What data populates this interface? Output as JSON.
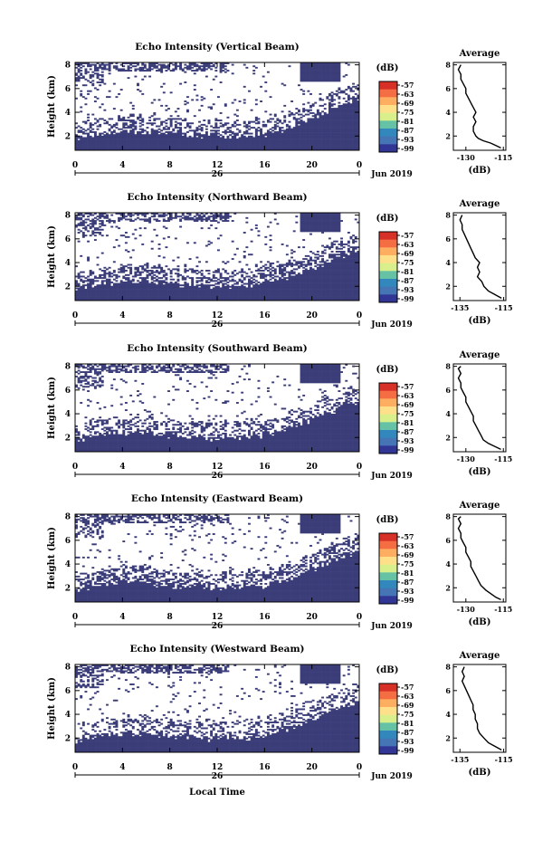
{
  "colorbar": {
    "unit": "(dB)",
    "ticks": [
      "-57",
      "-63",
      "-69",
      "-75",
      "-81",
      "-87",
      "-93",
      "-99"
    ],
    "colors": [
      "#d73027",
      "#f46d43",
      "#fdae61",
      "#fee08b",
      "#d9ef8b",
      "#66c2a5",
      "#3288bd",
      "#4575b4",
      "#313695"
    ]
  },
  "shared": {
    "height_label": "Height (km)",
    "y_ticks": [
      "2",
      "4",
      "6",
      "8"
    ],
    "x_ticks": [
      "0",
      "4",
      "8",
      "12",
      "16",
      "20",
      "0"
    ],
    "day_label": "26",
    "month_label": "Jun 2019",
    "avg_title": "Average",
    "avg_xlabel": "(dB)",
    "avg_y_ticks": [
      "2",
      "4",
      "6",
      "8"
    ]
  },
  "xlabel_bottom": "Local Time",
  "fill_color": "#3b3d79",
  "chart_data": [
    {
      "type": "heatmap",
      "title": "Echo Intensity (Vertical Beam)",
      "ylabel": "Height (km)",
      "xlim": [
        0,
        24
      ],
      "ylim": [
        0.8,
        8.2
      ],
      "avg": {
        "type": "line",
        "xlim": [
          -135,
          -114
        ],
        "x_ticks": [
          "-130",
          "-115"
        ],
        "profile": [
          [
            -116,
            1.0
          ],
          [
            -118,
            1.2
          ],
          [
            -120,
            1.4
          ],
          [
            -123,
            1.6
          ],
          [
            -125,
            1.8
          ],
          [
            -126,
            2.0
          ],
          [
            -127,
            2.4
          ],
          [
            -127,
            2.8
          ],
          [
            -126,
            3.2
          ],
          [
            -127,
            3.6
          ],
          [
            -126,
            4.0
          ],
          [
            -127,
            4.4
          ],
          [
            -128,
            4.8
          ],
          [
            -129,
            5.2
          ],
          [
            -130,
            5.6
          ],
          [
            -130,
            6.0
          ],
          [
            -131,
            6.4
          ],
          [
            -132,
            6.8
          ],
          [
            -132,
            7.2
          ],
          [
            -133,
            7.6
          ],
          [
            -132,
            8.0
          ]
        ]
      }
    },
    {
      "type": "heatmap",
      "title": "Echo Intensity (Northward Beam)",
      "ylabel": "Height (km)",
      "xlim": [
        0,
        24
      ],
      "ylim": [
        0.8,
        8.2
      ],
      "avg": {
        "type": "line",
        "xlim": [
          -138,
          -114
        ],
        "x_ticks": [
          "-135",
          "-115"
        ],
        "profile": [
          [
            -116,
            1.0
          ],
          [
            -119,
            1.3
          ],
          [
            -122,
            1.6
          ],
          [
            -124,
            2.0
          ],
          [
            -125,
            2.4
          ],
          [
            -127,
            2.8
          ],
          [
            -126,
            3.2
          ],
          [
            -127,
            3.6
          ],
          [
            -126,
            4.0
          ],
          [
            -128,
            4.4
          ],
          [
            -129,
            4.8
          ],
          [
            -130,
            5.2
          ],
          [
            -131,
            5.6
          ],
          [
            -132,
            6.0
          ],
          [
            -133,
            6.4
          ],
          [
            -134,
            6.8
          ],
          [
            -134,
            7.2
          ],
          [
            -135,
            7.6
          ],
          [
            -134,
            8.0
          ]
        ]
      }
    },
    {
      "type": "heatmap",
      "title": "Echo Intensity (Southward Beam)",
      "ylabel": "Height (km)",
      "xlim": [
        0,
        24
      ],
      "ylim": [
        0.8,
        8.2
      ],
      "avg": {
        "type": "line",
        "xlim": [
          -135,
          -114
        ],
        "x_ticks": [
          "-130",
          "-115"
        ],
        "profile": [
          [
            -116,
            1.0
          ],
          [
            -118,
            1.2
          ],
          [
            -121,
            1.5
          ],
          [
            -123,
            1.8
          ],
          [
            -124,
            2.2
          ],
          [
            -125,
            2.6
          ],
          [
            -126,
            3.0
          ],
          [
            -127,
            3.4
          ],
          [
            -127,
            3.8
          ],
          [
            -128,
            4.2
          ],
          [
            -129,
            4.6
          ],
          [
            -130,
            5.0
          ],
          [
            -130,
            5.4
          ],
          [
            -131,
            5.8
          ],
          [
            -132,
            6.2
          ],
          [
            -132,
            6.6
          ],
          [
            -133,
            7.0
          ],
          [
            -132,
            7.4
          ],
          [
            -133,
            7.8
          ],
          [
            -132,
            8.0
          ]
        ]
      }
    },
    {
      "type": "heatmap",
      "title": "Echo Intensity (Eastward Beam)",
      "ylabel": "Height (km)",
      "xlim": [
        0,
        24
      ],
      "ylim": [
        0.8,
        8.2
      ],
      "avg": {
        "type": "line",
        "xlim": [
          -135,
          -114
        ],
        "x_ticks": [
          "-130",
          "-115"
        ],
        "profile": [
          [
            -116,
            1.0
          ],
          [
            -118,
            1.2
          ],
          [
            -120,
            1.5
          ],
          [
            -122,
            1.8
          ],
          [
            -124,
            2.2
          ],
          [
            -125,
            2.6
          ],
          [
            -126,
            3.0
          ],
          [
            -127,
            3.4
          ],
          [
            -128,
            3.8
          ],
          [
            -128,
            4.2
          ],
          [
            -129,
            4.6
          ],
          [
            -130,
            5.0
          ],
          [
            -130,
            5.4
          ],
          [
            -131,
            5.8
          ],
          [
            -132,
            6.2
          ],
          [
            -132,
            6.6
          ],
          [
            -133,
            7.0
          ],
          [
            -132,
            7.4
          ],
          [
            -133,
            7.8
          ],
          [
            -132,
            8.0
          ]
        ]
      }
    },
    {
      "type": "heatmap",
      "title": "Echo Intensity (Westward Beam)",
      "ylabel": "Height (km)",
      "xlim": [
        0,
        24
      ],
      "ylim": [
        0.8,
        8.2
      ],
      "xlabel": "Local Time",
      "avg": {
        "type": "line",
        "xlim": [
          -138,
          -114
        ],
        "x_ticks": [
          "-135",
          "-115"
        ],
        "profile": [
          [
            -116,
            1.0
          ],
          [
            -119,
            1.3
          ],
          [
            -122,
            1.6
          ],
          [
            -124,
            2.0
          ],
          [
            -126,
            2.4
          ],
          [
            -127,
            2.8
          ],
          [
            -127,
            3.2
          ],
          [
            -128,
            3.6
          ],
          [
            -128,
            4.0
          ],
          [
            -129,
            4.4
          ],
          [
            -129,
            4.8
          ],
          [
            -130,
            5.2
          ],
          [
            -131,
            5.6
          ],
          [
            -132,
            6.0
          ],
          [
            -133,
            6.4
          ],
          [
            -134,
            6.8
          ],
          [
            -133,
            7.2
          ],
          [
            -134,
            7.6
          ],
          [
            -133,
            8.0
          ]
        ]
      }
    }
  ]
}
